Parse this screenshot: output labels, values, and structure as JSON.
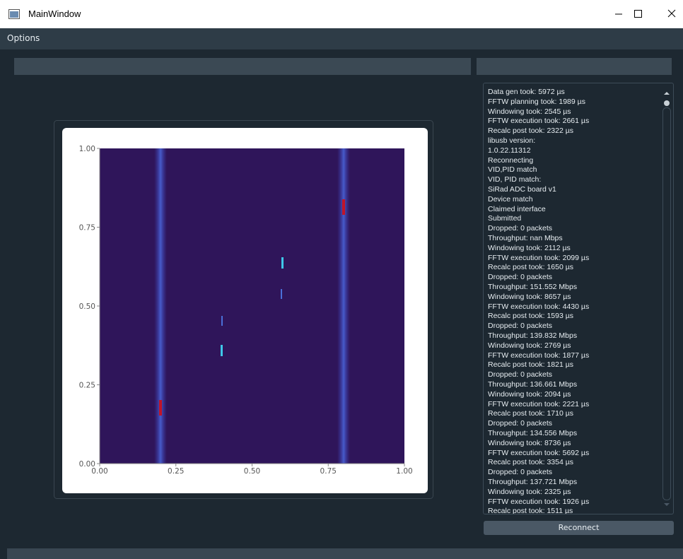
{
  "window": {
    "title": "MainWindow"
  },
  "menu": [
    "Options"
  ],
  "plot": {
    "xlim": [
      0,
      1
    ],
    "ylim": [
      0,
      1
    ],
    "xticks": [
      {
        "value": 0,
        "label": "0.00"
      },
      {
        "value": 0.25,
        "label": "0.25"
      },
      {
        "value": 0.5,
        "label": "0.50"
      },
      {
        "value": 0.75,
        "label": "0.75"
      },
      {
        "value": 1,
        "label": "1.00"
      }
    ],
    "yticks": [
      {
        "value": 0,
        "label": "0.00"
      },
      {
        "value": 0.25,
        "label": "0.25"
      },
      {
        "value": 0.5,
        "label": "0.50"
      },
      {
        "value": 0.75,
        "label": "0.75"
      },
      {
        "value": 1,
        "label": "1.00"
      }
    ]
  },
  "log": [
    "Data gen took: 5972 µs",
    "FFTW planning took: 1989 µs",
    "Windowing took: 2545 µs",
    "FFTW execution took: 2661 µs",
    "Recalc post took: 2322 µs",
    "libusb version:",
    "1.0.22.11312",
    "Reconnecting",
    "VID,PID match",
    "VID, PID match:",
    "SiRad ADC board v1",
    "Device match",
    "Claimed interface",
    "Submitted",
    "Dropped: 0 packets",
    "Throughput: nan Mbps",
    "Windowing took: 2112 µs",
    "FFTW execution took: 2099 µs",
    "Recalc post took: 1650 µs",
    "Dropped: 0 packets",
    "Throughput: 151.552 Mbps",
    "Windowing took: 8657 µs",
    "FFTW execution took: 4430 µs",
    "Recalc post took: 1593 µs",
    "Dropped: 0 packets",
    "Throughput: 139.832 Mbps",
    "Windowing took: 2769 µs",
    "FFTW execution took: 1877 µs",
    "Recalc post took: 1821 µs",
    "Dropped: 0 packets",
    "Throughput: 136.661 Mbps",
    "Windowing took: 2094 µs",
    "FFTW execution took: 2221 µs",
    "Recalc post took: 1710 µs",
    "Dropped: 0 packets",
    "Throughput: 134.556 Mbps",
    "Windowing took: 8736 µs",
    "FFTW execution took: 5692 µs",
    "Recalc post took: 3354 µs",
    "Dropped: 0 packets",
    "Throughput: 137.721 Mbps",
    "Windowing took: 2325 µs",
    "FFTW execution took: 1926 µs",
    "Recalc post took: 1511 µs"
  ],
  "button": "Reconnect"
}
